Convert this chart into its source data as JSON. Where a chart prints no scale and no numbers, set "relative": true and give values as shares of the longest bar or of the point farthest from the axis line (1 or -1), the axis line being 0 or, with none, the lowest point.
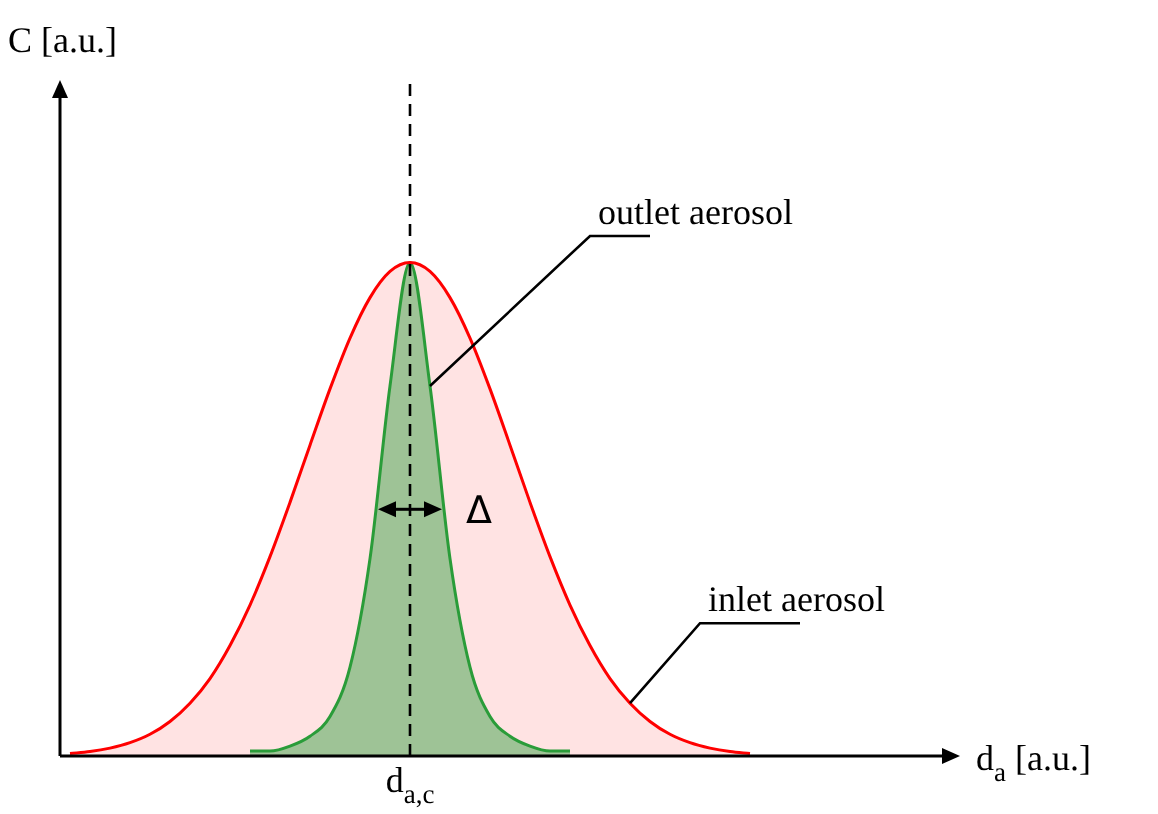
{
  "chart_data": {
    "type": "area",
    "relative": true,
    "categories": [
      null,
      null,
      null,
      null,
      null,
      null,
      null,
      null,
      null,
      null,
      null,
      null,
      null,
      null,
      null,
      null,
      null,
      null,
      null,
      null,
      null,
      null,
      null,
      null,
      null,
      null,
      null,
      null,
      null,
      null,
      null,
      null,
      null,
      null,
      null
    ],
    "series": [
      {
        "name": "inlet aerosol",
        "color": "#ff0000",
        "values": [
          0.005,
          0.009,
          0.016,
          0.027,
          0.044,
          0.07,
          0.107,
          0.157,
          0.224,
          0.306,
          0.404,
          0.514,
          0.63,
          0.744,
          0.847,
          0.929,
          0.982,
          1,
          0.982,
          0.929,
          0.847,
          0.744,
          0.63,
          0.514,
          0.404,
          0.306,
          0.224,
          0.157,
          0.107,
          0.07,
          0.044,
          0.027,
          0.016,
          0.009,
          0.005
        ]
      },
      {
        "name": "outlet aerosol",
        "color": "#10b040",
        "values": [
          null,
          null,
          null,
          null,
          null,
          null,
          null,
          null,
          null,
          0.01,
          0.01,
          0.02,
          0.04,
          0.08,
          0.18,
          0.4,
          0.75,
          1,
          0.75,
          0.4,
          0.18,
          0.08,
          0.04,
          0.02,
          0.01,
          0.01,
          null,
          null,
          null,
          null,
          null,
          null,
          null,
          null,
          null
        ]
      }
    ],
    "annotations": [
      "C [a.u.]",
      "d$_{a}$ [a.u.]",
      "d$_{a,c}$",
      "Δ"
    ],
    "legend": false
  }
}
